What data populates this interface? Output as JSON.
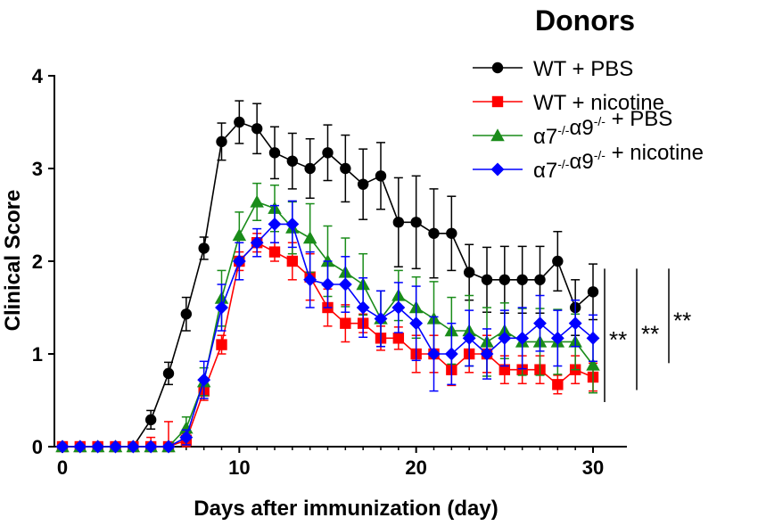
{
  "chart_data": {
    "type": "line",
    "title": "",
    "xlabel": "Days after immunization (day)",
    "ylabel": "Clinical Score",
    "xlim": [
      0,
      30
    ],
    "ylim": [
      0,
      4
    ],
    "xticks": [
      0,
      10,
      20,
      30
    ],
    "yticks": [
      0,
      1,
      2,
      3,
      4
    ],
    "grid": false,
    "legend": {
      "title": "Donors",
      "position": "top-right"
    },
    "series": [
      {
        "name": "WT + PBS",
        "name_parts": [
          "WT + PBS"
        ],
        "color": "#000000",
        "marker": "circle",
        "x": [
          0,
          1,
          2,
          3,
          4,
          5,
          6,
          7,
          8,
          9,
          10,
          11,
          12,
          13,
          14,
          15,
          16,
          17,
          18,
          19,
          20,
          21,
          22,
          23,
          24,
          25,
          26,
          27,
          28,
          29,
          30
        ],
        "y": [
          0,
          0,
          0,
          0,
          0,
          0.29,
          0.79,
          1.43,
          2.14,
          3.29,
          3.5,
          3.43,
          3.17,
          3.08,
          3.0,
          3.17,
          3.0,
          2.83,
          2.92,
          2.42,
          2.42,
          2.3,
          2.3,
          1.88,
          1.8,
          1.8,
          1.8,
          1.8,
          2.0,
          1.5,
          1.67
        ],
        "err": [
          0,
          0,
          0,
          0,
          0,
          0.1,
          0.12,
          0.18,
          0.12,
          0.2,
          0.23,
          0.27,
          0.28,
          0.3,
          0.32,
          0.3,
          0.36,
          0.38,
          0.36,
          0.48,
          0.5,
          0.48,
          0.4,
          0.3,
          0.35,
          0.36,
          0.36,
          0.36,
          0.32,
          0.3,
          0.3
        ]
      },
      {
        "name": "WT + nicotine",
        "name_parts": [
          "WT + nicotine"
        ],
        "color": "#ff0000",
        "marker": "square",
        "x": [
          0,
          1,
          2,
          3,
          4,
          5,
          6,
          7,
          8,
          9,
          10,
          11,
          12,
          13,
          14,
          15,
          16,
          17,
          18,
          19,
          20,
          21,
          22,
          23,
          24,
          25,
          26,
          27,
          28,
          29,
          30
        ],
        "y": [
          0,
          0,
          0,
          0,
          0,
          0,
          0,
          0.07,
          0.6,
          1.1,
          2.0,
          2.2,
          2.1,
          2.0,
          1.83,
          1.5,
          1.33,
          1.33,
          1.17,
          1.17,
          1.0,
          1.0,
          0.83,
          1.0,
          1.0,
          0.83,
          0.83,
          0.83,
          0.67,
          0.83,
          0.75
        ],
        "err": [
          0,
          0,
          0,
          0,
          0,
          0.1,
          0.27,
          0.07,
          0.1,
          0.1,
          0.1,
          0.1,
          0.1,
          0.2,
          0.25,
          0.2,
          0.2,
          0.1,
          0.13,
          0.12,
          0.2,
          0.2,
          0.17,
          0.2,
          0.2,
          0.15,
          0.15,
          0.15,
          0.1,
          0.15,
          0.15
        ]
      },
      {
        "name": "α7-/-α9-/- + PBS",
        "name_parts": [
          "α7",
          "-/-",
          "α9",
          "-/-",
          " + PBS"
        ],
        "color": "#1a8c1a",
        "marker": "triangle",
        "x": [
          0,
          1,
          2,
          3,
          4,
          5,
          6,
          7,
          8,
          9,
          10,
          11,
          12,
          13,
          14,
          15,
          16,
          17,
          18,
          19,
          20,
          21,
          22,
          23,
          24,
          25,
          26,
          27,
          28,
          29,
          30
        ],
        "y": [
          0,
          0,
          0,
          0,
          0,
          0,
          0,
          0.2,
          0.7,
          1.6,
          2.28,
          2.64,
          2.57,
          2.36,
          2.25,
          2.0,
          1.88,
          1.75,
          1.38,
          1.63,
          1.5,
          1.38,
          1.25,
          1.25,
          1.13,
          1.25,
          1.13,
          1.13,
          1.13,
          1.13,
          0.88
        ],
        "err": [
          0,
          0,
          0,
          0,
          0,
          0,
          0,
          0.12,
          0.15,
          0.3,
          0.25,
          0.2,
          0.25,
          0.28,
          0.37,
          0.38,
          0.37,
          0.33,
          0.3,
          0.27,
          0.33,
          0.4,
          0.36,
          0.38,
          0.37,
          0.3,
          0.36,
          0.36,
          0.35,
          0.3,
          0.3
        ]
      },
      {
        "name": "α7-/-α9-/- + nicotine",
        "name_parts": [
          "α7",
          "-/-",
          "α9",
          "-/-",
          " + nicotine"
        ],
        "color": "#0000ff",
        "marker": "diamond",
        "x": [
          0,
          1,
          2,
          3,
          4,
          5,
          6,
          7,
          8,
          9,
          10,
          11,
          12,
          13,
          14,
          15,
          16,
          17,
          18,
          19,
          20,
          21,
          22,
          23,
          24,
          25,
          26,
          27,
          28,
          29,
          30
        ],
        "y": [
          0,
          0,
          0,
          0,
          0,
          0,
          0,
          0.1,
          0.72,
          1.5,
          2.0,
          2.2,
          2.4,
          2.4,
          1.8,
          1.75,
          1.75,
          1.5,
          1.38,
          1.5,
          1.33,
          1.0,
          1.0,
          1.17,
          1.0,
          1.17,
          1.17,
          1.33,
          1.17,
          1.33,
          1.17
        ],
        "err": [
          0,
          0,
          0,
          0,
          0,
          0,
          0,
          0.08,
          0.2,
          0.25,
          0.2,
          0.15,
          0.2,
          0.25,
          0.3,
          0.25,
          0.3,
          0.32,
          0.3,
          0.27,
          0.4,
          0.4,
          0.33,
          0.3,
          0.27,
          0.3,
          0.33,
          0.3,
          0.3,
          0.25,
          0.25
        ]
      }
    ],
    "significance": [
      {
        "label": "**",
        "from": 1.67,
        "to": 0.75
      },
      {
        "label": "**",
        "from": 1.67,
        "to": 0.88
      },
      {
        "label": "**",
        "from": 1.67,
        "to": 1.17
      }
    ]
  }
}
